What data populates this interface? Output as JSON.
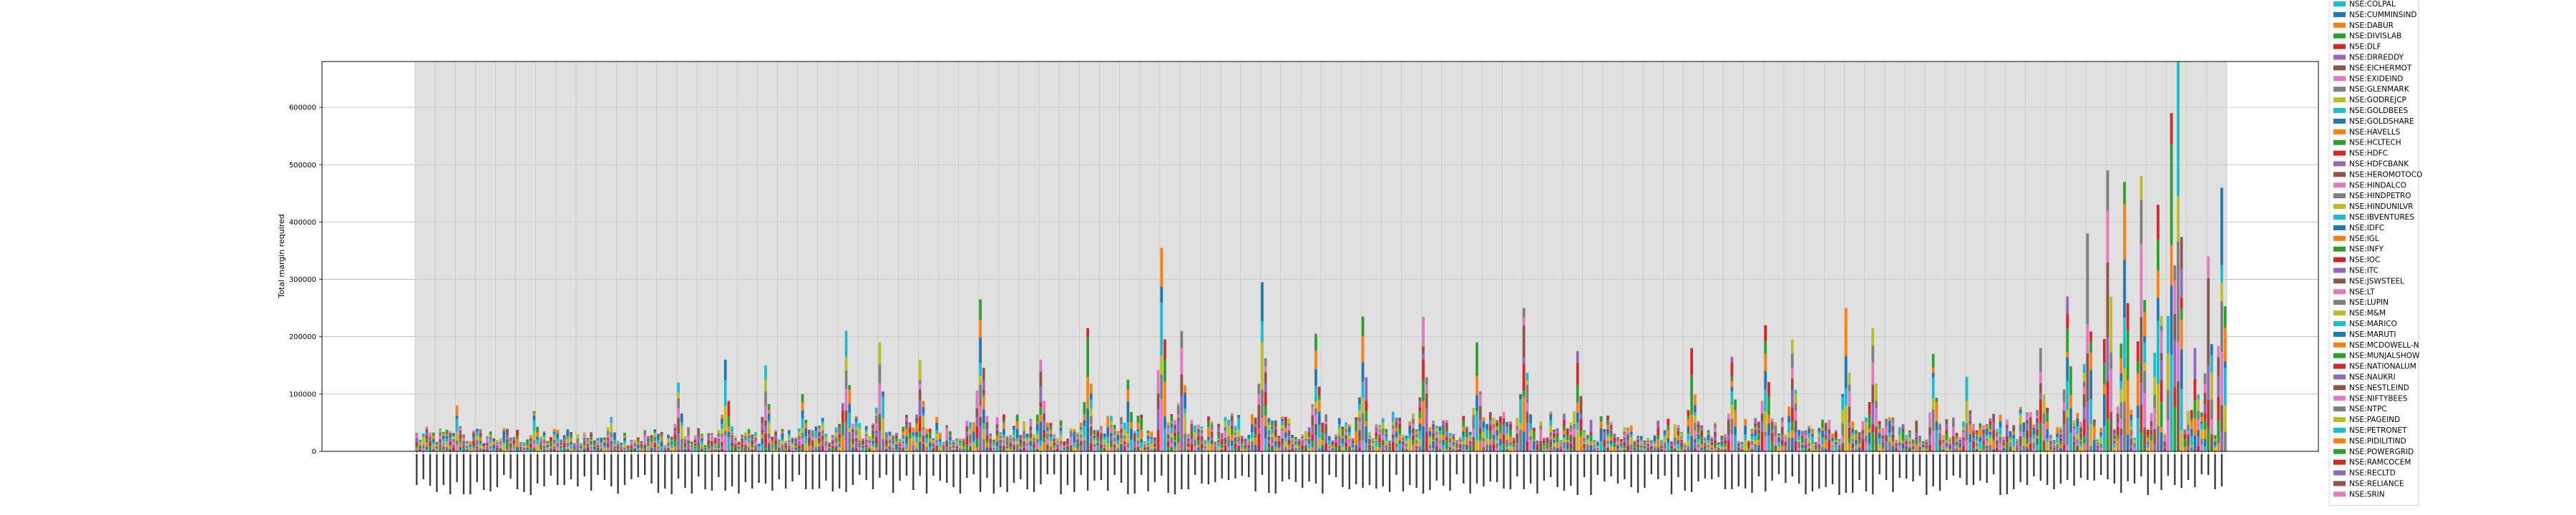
{
  "chart_data": {
    "type": "bar",
    "stacked": true,
    "ylabel": "Total margin required",
    "ylim": [
      0,
      680000
    ],
    "yticks": [
      0,
      100000,
      200000,
      300000,
      400000,
      500000,
      600000
    ],
    "ytick_labels": [
      "0",
      "100000",
      "200000",
      "300000",
      "400000",
      "500000",
      "600000"
    ],
    "grid": true,
    "legend_placement": "right (outside axes, clipped at top and bottom)",
    "num_categories": 540,
    "series_colors": [
      "#1f77b4",
      "#ff7f0e",
      "#2ca02c",
      "#d62728",
      "#9467bd",
      "#8c564b",
      "#e377c2",
      "#7f7f7f",
      "#bcbd22",
      "#17becf"
    ],
    "legend": [
      {
        "name": "NSE:COLPAL",
        "color": "#17becf"
      },
      {
        "name": "NSE:CUMMINSIND",
        "color": "#1f77b4"
      },
      {
        "name": "NSE:DABUR",
        "color": "#ff7f0e"
      },
      {
        "name": "NSE:DIVISLAB",
        "color": "#2ca02c"
      },
      {
        "name": "NSE:DLF",
        "color": "#d62728"
      },
      {
        "name": "NSE:DRREDDY",
        "color": "#9467bd"
      },
      {
        "name": "NSE:EICHERMOT",
        "color": "#8c564b"
      },
      {
        "name": "NSE:EXIDEIND",
        "color": "#e377c2"
      },
      {
        "name": "NSE:GLENMARK",
        "color": "#7f7f7f"
      },
      {
        "name": "NSE:GODREJCP",
        "color": "#bcbd22"
      },
      {
        "name": "NSE:GOLDBEES",
        "color": "#17becf"
      },
      {
        "name": "NSE:GOLDSHARE",
        "color": "#1f77b4"
      },
      {
        "name": "NSE:HAVELLS",
        "color": "#ff7f0e"
      },
      {
        "name": "NSE:HCLTECH",
        "color": "#2ca02c"
      },
      {
        "name": "NSE:HDFC",
        "color": "#d62728"
      },
      {
        "name": "NSE:HDFCBANK",
        "color": "#9467bd"
      },
      {
        "name": "NSE:HEROMOTOCO",
        "color": "#8c564b"
      },
      {
        "name": "NSE:HINDALCO",
        "color": "#e377c2"
      },
      {
        "name": "NSE:HINDPETRO",
        "color": "#7f7f7f"
      },
      {
        "name": "NSE:HINDUNILVR",
        "color": "#bcbd22"
      },
      {
        "name": "NSE:IBVENTURES",
        "color": "#17becf"
      },
      {
        "name": "NSE:IDFC",
        "color": "#1f77b4"
      },
      {
        "name": "NSE:IGL",
        "color": "#ff7f0e"
      },
      {
        "name": "NSE:INFY",
        "color": "#2ca02c"
      },
      {
        "name": "NSE:IOC",
        "color": "#d62728"
      },
      {
        "name": "NSE:ITC",
        "color": "#9467bd"
      },
      {
        "name": "NSE:JSWSTEEL",
        "color": "#8c564b"
      },
      {
        "name": "NSE:LT",
        "color": "#e377c2"
      },
      {
        "name": "NSE:LUPIN",
        "color": "#7f7f7f"
      },
      {
        "name": "NSE:M&M",
        "color": "#bcbd22"
      },
      {
        "name": "NSE:MARICO",
        "color": "#17becf"
      },
      {
        "name": "NSE:MARUTI",
        "color": "#1f77b4"
      },
      {
        "name": "NSE:MCDOWELL-N",
        "color": "#ff7f0e"
      },
      {
        "name": "NSE:MUNJALSHOW",
        "color": "#2ca02c"
      },
      {
        "name": "NSE:NATIONALUM",
        "color": "#d62728"
      },
      {
        "name": "NSE:NAUKRI",
        "color": "#9467bd"
      },
      {
        "name": "NSE:NESTLEIND",
        "color": "#8c564b"
      },
      {
        "name": "NSE:NIFTYBEES",
        "color": "#e377c2"
      },
      {
        "name": "NSE:NTPC",
        "color": "#7f7f7f"
      },
      {
        "name": "NSE:PAGEIND",
        "color": "#bcbd22"
      },
      {
        "name": "NSE:PETRONET",
        "color": "#17becf"
      },
      {
        "name": "NSE:PIDILITIND",
        "color": "#ff7f0e"
      },
      {
        "name": "NSE:POWERGRID",
        "color": "#2ca02c"
      },
      {
        "name": "NSE:RAMCOCEM",
        "color": "#d62728"
      },
      {
        "name": "NSE:RECLTD",
        "color": "#9467bd"
      },
      {
        "name": "NSE:RELIANCE",
        "color": "#8c564b"
      },
      {
        "name": "NSE:SRIN",
        "color": "#e377c2"
      }
    ],
    "totals_profile": [
      {
        "from": 0,
        "to": 120,
        "typical": 30000,
        "peaks": [
          [
            12,
            80000
          ],
          [
            35,
            70000
          ],
          [
            58,
            60000
          ],
          [
            78,
            120000
          ],
          [
            92,
            160000
          ],
          [
            104,
            150000
          ],
          [
            115,
            100000
          ]
        ]
      },
      {
        "from": 120,
        "to": 240,
        "typical": 45000,
        "peaks": [
          [
            128,
            210000
          ],
          [
            138,
            190000
          ],
          [
            150,
            160000
          ],
          [
            168,
            265000
          ],
          [
            186,
            160000
          ],
          [
            200,
            215000
          ],
          [
            212,
            125000
          ],
          [
            222,
            355000
          ],
          [
            228,
            210000
          ]
        ]
      },
      {
        "from": 240,
        "to": 360,
        "typical": 48000,
        "peaks": [
          [
            252,
            295000
          ],
          [
            268,
            205000
          ],
          [
            282,
            235000
          ],
          [
            300,
            235000
          ],
          [
            316,
            190000
          ],
          [
            330,
            250000
          ],
          [
            346,
            175000
          ]
        ]
      },
      {
        "from": 360,
        "to": 470,
        "typical": 42000,
        "peaks": [
          [
            380,
            180000
          ],
          [
            392,
            165000
          ],
          [
            402,
            220000
          ],
          [
            410,
            195000
          ],
          [
            426,
            250000
          ],
          [
            434,
            215000
          ],
          [
            452,
            170000
          ],
          [
            462,
            130000
          ]
        ]
      },
      {
        "from": 470,
        "to": 540,
        "typical": 55000,
        "peaks": [
          [
            484,
            180000
          ],
          [
            492,
            270000
          ],
          [
            498,
            380000
          ],
          [
            504,
            490000
          ],
          [
            509,
            470000
          ],
          [
            514,
            480000
          ],
          [
            519,
            430000
          ],
          [
            523,
            590000
          ],
          [
            525,
            680000
          ],
          [
            530,
            180000
          ],
          [
            534,
            340000
          ],
          [
            538,
            460000
          ]
        ]
      }
    ]
  }
}
